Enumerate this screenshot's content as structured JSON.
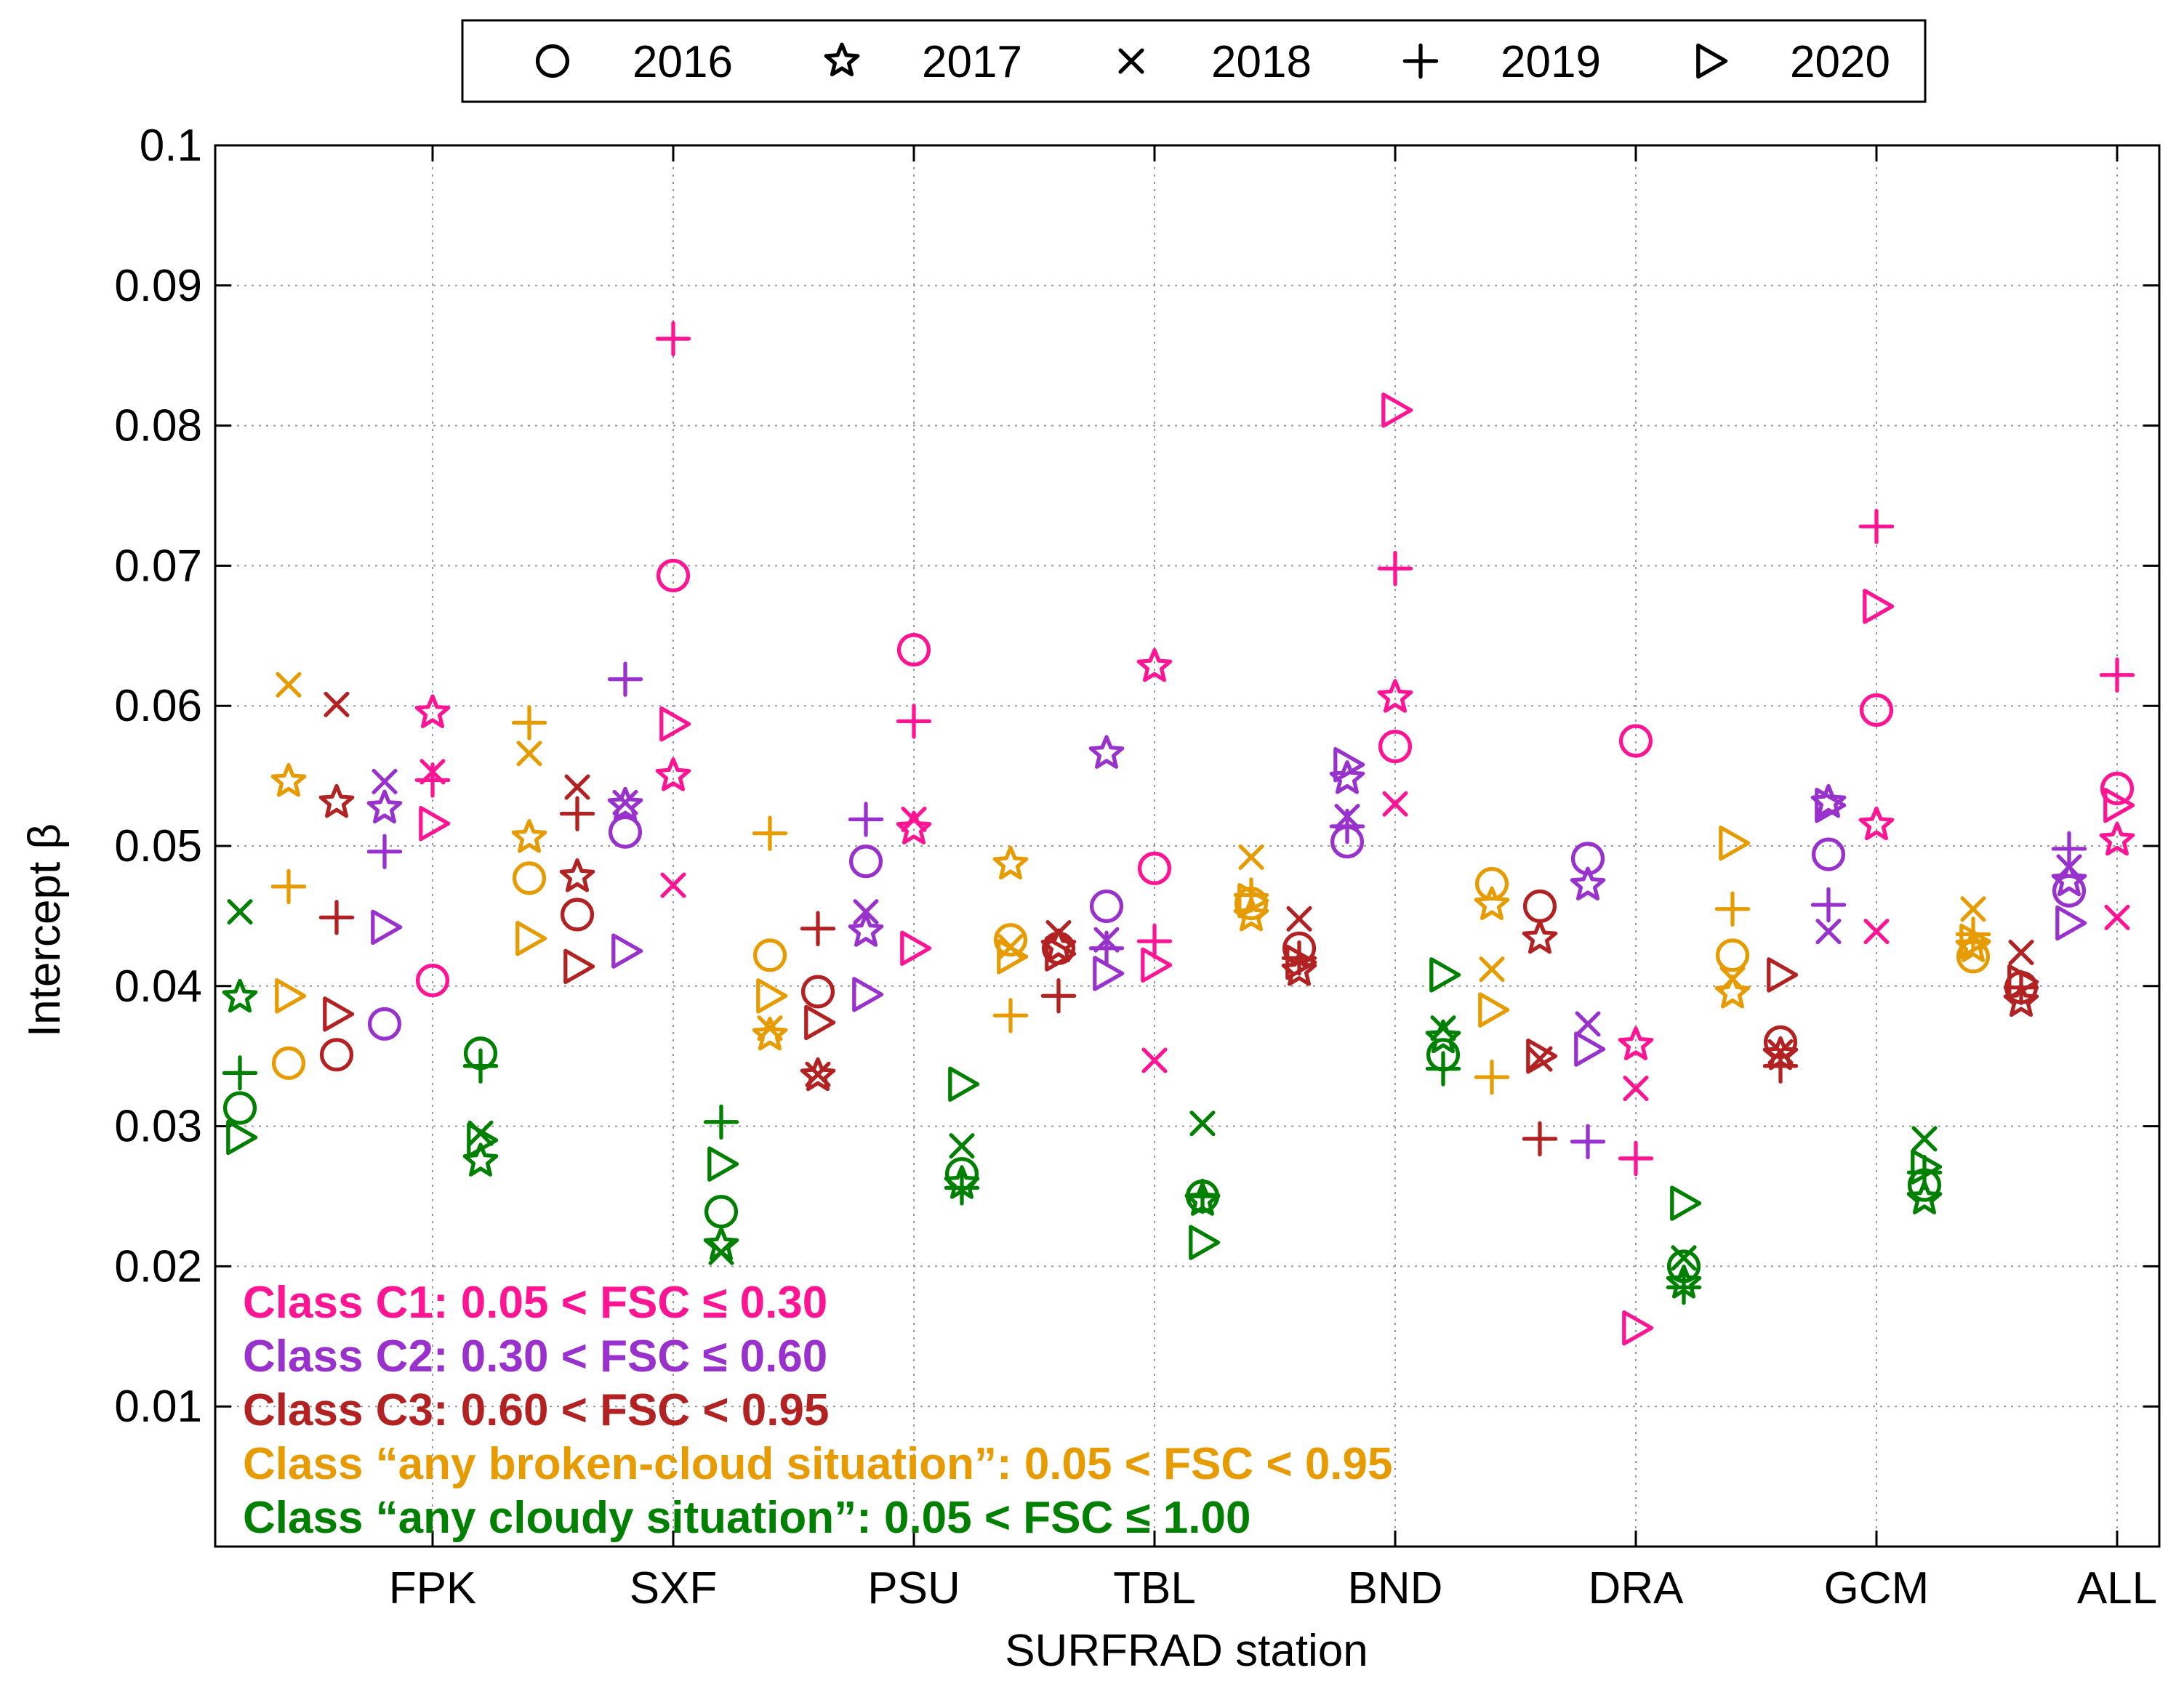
{
  "chart_data": {
    "type": "scatter",
    "title": "",
    "xlabel": "SURFRAD station",
    "ylabel": "Intercept β",
    "categories": [
      "FPK",
      "SXF",
      "PSU",
      "TBL",
      "BND",
      "DRA",
      "GCM",
      "ALL"
    ],
    "ylim": [
      0,
      0.1
    ],
    "yticks": [
      "0.01",
      "0.02",
      "0.03",
      "0.04",
      "0.05",
      "0.06",
      "0.07",
      "0.08",
      "0.09",
      "0.1"
    ],
    "grid": true,
    "legend_position": "top-center",
    "legend": [
      {
        "year": "2016",
        "marker": "circle"
      },
      {
        "year": "2017",
        "marker": "star"
      },
      {
        "year": "2018",
        "marker": "x"
      },
      {
        "year": "2019",
        "marker": "plus"
      },
      {
        "year": "2020",
        "marker": "triangle-right"
      }
    ],
    "years": [
      "2016",
      "2017",
      "2018",
      "2019",
      "2020"
    ],
    "classes": [
      {
        "id": "C1",
        "label": "Class C1: 0.05 < FSC ≤ 0.30",
        "color": "#ff1493"
      },
      {
        "id": "C2",
        "label": "Class C2: 0.30 < FSC ≤ 0.60",
        "color": "#9932cc"
      },
      {
        "id": "C3",
        "label": "Class C3: 0.60 < FSC < 0.95",
        "color": "#b22222"
      },
      {
        "id": "broken",
        "label": "Class “any broken-cloud situation”: 0.05 < FSC < 0.95",
        "color": "#e69c00"
      },
      {
        "id": "cloudy",
        "label": "Class “any cloudy situation”: 0.05 < FSC ≤ 1.00",
        "color": "#008000"
      }
    ],
    "series": [
      {
        "station": "FPK",
        "class": "C1",
        "values": [
          0.0404,
          0.0595,
          0.0553,
          0.0547,
          0.0516
        ]
      },
      {
        "station": "FPK",
        "class": "C2",
        "values": [
          0.0373,
          0.0527,
          0.0546,
          0.0496,
          0.0442
        ]
      },
      {
        "station": "FPK",
        "class": "C3",
        "values": [
          0.0351,
          0.0531,
          0.0601,
          0.0449,
          0.038
        ]
      },
      {
        "station": "FPK",
        "class": "broken",
        "values": [
          0.0345,
          0.0546,
          0.0615,
          0.0471,
          0.0393
        ]
      },
      {
        "station": "FPK",
        "class": "cloudy",
        "values": [
          0.0313,
          0.0392,
          0.0453,
          0.0338,
          0.0292
        ]
      },
      {
        "station": "SXF",
        "class": "C1",
        "values": [
          0.0693,
          0.055,
          0.0472,
          0.0862,
          0.0587
        ]
      },
      {
        "station": "SXF",
        "class": "C2",
        "values": [
          0.051,
          0.0529,
          0.0531,
          0.0619,
          0.0425
        ]
      },
      {
        "station": "SXF",
        "class": "C3",
        "values": [
          0.0451,
          0.0478,
          0.0542,
          0.0523,
          0.0414
        ]
      },
      {
        "station": "SXF",
        "class": "broken",
        "values": [
          0.0477,
          0.0506,
          0.0566,
          0.0588,
          0.0434
        ]
      },
      {
        "station": "SXF",
        "class": "cloudy",
        "values": [
          0.0352,
          0.0275,
          0.0295,
          0.0343,
          0.029
        ]
      },
      {
        "station": "PSU",
        "class": "C1",
        "values": [
          0.064,
          0.0512,
          0.0519,
          0.0589,
          0.0427
        ]
      },
      {
        "station": "PSU",
        "class": "C2",
        "values": [
          0.0489,
          0.0439,
          0.0453,
          0.0519,
          0.0394
        ]
      },
      {
        "station": "PSU",
        "class": "C3",
        "values": [
          0.0396,
          0.0336,
          0.0337,
          0.0441,
          0.0374
        ]
      },
      {
        "station": "PSU",
        "class": "broken",
        "values": [
          0.0422,
          0.0365,
          0.037,
          0.0509,
          0.0393
        ]
      },
      {
        "station": "PSU",
        "class": "cloudy",
        "values": [
          0.0239,
          0.0215,
          0.021,
          0.0303,
          0.0273
        ]
      },
      {
        "station": "TBL",
        "class": "C1",
        "values": [
          0.0484,
          0.0628,
          0.0347,
          0.0432,
          0.0415
        ]
      },
      {
        "station": "TBL",
        "class": "C2",
        "values": [
          0.0457,
          0.0566,
          0.0433,
          0.0427,
          0.0409
        ]
      },
      {
        "station": "TBL",
        "class": "C3",
        "values": [
          0.0427,
          0.0428,
          0.0438,
          0.0393,
          0.0423
        ]
      },
      {
        "station": "TBL",
        "class": "broken",
        "values": [
          0.0433,
          0.0487,
          0.0428,
          0.0379,
          0.0421
        ]
      },
      {
        "station": "TBL",
        "class": "cloudy",
        "values": [
          0.0266,
          0.0259,
          0.0286,
          0.0256,
          0.033
        ]
      },
      {
        "station": "BND",
        "class": "C1",
        "values": [
          0.0571,
          0.0606,
          0.053,
          0.0698,
          0.0811
        ]
      },
      {
        "station": "BND",
        "class": "C2",
        "values": [
          0.0503,
          0.0548,
          0.0521,
          0.0514,
          0.0558
        ]
      },
      {
        "station": "BND",
        "class": "C3",
        "values": [
          0.0427,
          0.0411,
          0.0448,
          0.042,
          0.0417
        ]
      },
      {
        "station": "BND",
        "class": "broken",
        "values": [
          0.0459,
          0.045,
          0.0492,
          0.0465,
          0.0461
        ]
      },
      {
        "station": "BND",
        "class": "cloudy",
        "values": [
          0.025,
          0.0247,
          0.0302,
          0.025,
          0.0217
        ]
      },
      {
        "station": "DRA",
        "class": "C1",
        "values": [
          0.0575,
          0.0358,
          0.0327,
          0.0277,
          0.0156
        ]
      },
      {
        "station": "DRA",
        "class": "C2",
        "values": [
          0.0491,
          0.0472,
          0.0373,
          0.0289,
          0.0355
        ]
      },
      {
        "station": "DRA",
        "class": "C3",
        "values": [
          0.0457,
          0.0434,
          0.0348,
          0.0291,
          0.035
        ]
      },
      {
        "station": "DRA",
        "class": "broken",
        "values": [
          0.0473,
          0.0458,
          0.0412,
          0.0335,
          0.0383
        ]
      },
      {
        "station": "DRA",
        "class": "cloudy",
        "values": [
          0.0351,
          0.0363,
          0.037,
          0.0341,
          0.0408
        ]
      },
      {
        "station": "GCM",
        "class": "C1",
        "values": [
          0.0597,
          0.0515,
          0.0439,
          0.0728,
          0.0671
        ]
      },
      {
        "station": "GCM",
        "class": "C2",
        "values": [
          0.0494,
          0.0531,
          0.0439,
          0.0458,
          0.0529
        ]
      },
      {
        "station": "GCM",
        "class": "C3",
        "values": [
          0.036,
          0.0351,
          0.0353,
          0.0343,
          0.0408
        ]
      },
      {
        "station": "GCM",
        "class": "broken",
        "values": [
          0.0422,
          0.0395,
          0.0405,
          0.0455,
          0.0502
        ]
      },
      {
        "station": "GCM",
        "class": "cloudy",
        "values": [
          0.02,
          0.0188,
          0.0206,
          0.0185,
          0.0245
        ]
      },
      {
        "station": "ALL",
        "class": "C1",
        "values": [
          0.0541,
          0.0504,
          0.0449,
          0.0622,
          0.0529
        ]
      },
      {
        "station": "ALL",
        "class": "C2",
        "values": [
          0.0468,
          0.0475,
          0.0485,
          0.0498,
          0.0445
        ]
      },
      {
        "station": "ALL",
        "class": "C3",
        "values": [
          0.0399,
          0.0389,
          0.0424,
          0.0399,
          0.0403
        ]
      },
      {
        "station": "ALL",
        "class": "broken",
        "values": [
          0.0421,
          0.0428,
          0.0455,
          0.0437,
          0.0432
        ]
      },
      {
        "station": "ALL",
        "class": "cloudy",
        "values": [
          0.0258,
          0.0248,
          0.0291,
          0.0267,
          0.0271
        ]
      }
    ]
  }
}
